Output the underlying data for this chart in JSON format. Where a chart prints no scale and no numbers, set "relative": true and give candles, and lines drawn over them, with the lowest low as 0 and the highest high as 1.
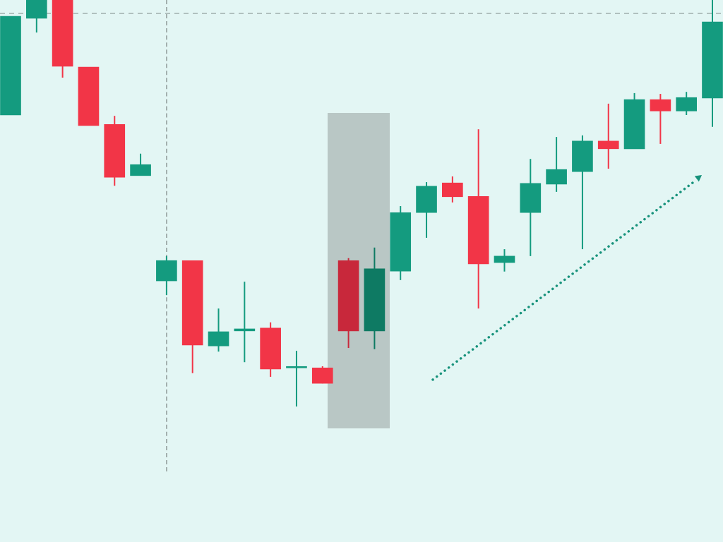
{
  "chart_data": {
    "type": "candlestick",
    "relative": true,
    "tick_labels": false,
    "categories": [
      null,
      null,
      null,
      null,
      null,
      null,
      null,
      null,
      null,
      null,
      null,
      null,
      null,
      null,
      null,
      null,
      null,
      null,
      null,
      null,
      null,
      null,
      null,
      null,
      null,
      null,
      null,
      null
    ],
    "ohlc": [
      [
        0.717,
        0.96,
        0.717,
        0.96
      ],
      [
        0.955,
        1,
        0.92,
        1
      ],
      [
        1,
        1,
        0.809,
        0.837
      ],
      [
        0.835,
        0.835,
        0.691,
        0.691
      ],
      [
        0.694,
        0.715,
        0.543,
        0.564
      ],
      [
        0.568,
        0.622,
        0.568,
        0.595
      ],
      [
        0.309,
        0.37,
        0.274,
        0.359
      ],
      [
        0.359,
        0.359,
        0.082,
        0.151
      ],
      [
        0.149,
        0.241,
        0.135,
        0.184
      ],
      [
        0.186,
        0.307,
        0.109,
        0.191
      ],
      [
        0.193,
        0.207,
        0.073,
        0.092
      ],
      [
        0.095,
        0.137,
        0,
        0.097
      ],
      [
        0.095,
        0.099,
        0.057,
        0.057
      ],
      [
        0.359,
        0.365,
        0.144,
        0.186
      ],
      [
        0.186,
        0.391,
        0.141,
        0.339
      ],
      [
        0.333,
        0.493,
        0.311,
        0.477
      ],
      [
        0.477,
        0.552,
        0.415,
        0.542
      ],
      [
        0.55,
        0.566,
        0.502,
        0.516
      ],
      [
        0.517,
        0.682,
        0.241,
        0.351
      ],
      [
        0.354,
        0.387,
        0.332,
        0.37
      ],
      [
        0.477,
        0.609,
        0.37,
        0.549
      ],
      [
        0.547,
        0.663,
        0.528,
        0.583
      ],
      [
        0.578,
        0.667,
        0.387,
        0.653
      ],
      [
        0.653,
        0.745,
        0.585,
        0.634
      ],
      [
        0.634,
        0.771,
        0.634,
        0.755
      ],
      [
        0.755,
        0.769,
        0.646,
        0.727
      ],
      [
        0.727,
        0.774,
        0.717,
        0.76
      ],
      [
        0.759,
        1,
        0.688,
        0.946
      ]
    ],
    "colors": [
      "#149b7f",
      "#149b7f",
      "#f23547",
      "#f23547",
      "#f23547",
      "#149b7f",
      "#149b7f",
      "#f23547",
      "#149b7f",
      "#149b7f",
      "#f23547",
      "#149b7f",
      "#f23547",
      "#c8283b",
      "#0e7a63",
      "#149b7f",
      "#149b7f",
      "#f23547",
      "#f23547",
      "#149b7f",
      "#149b7f",
      "#149b7f",
      "#149b7f",
      "#f23547",
      "#149b7f",
      "#f23547",
      "#149b7f",
      "#149b7f"
    ],
    "ref_lines": [
      {
        "axis": "y",
        "value": 0.967,
        "color": "#a0aeac",
        "line_style": "dashed"
      }
    ]
  }
}
